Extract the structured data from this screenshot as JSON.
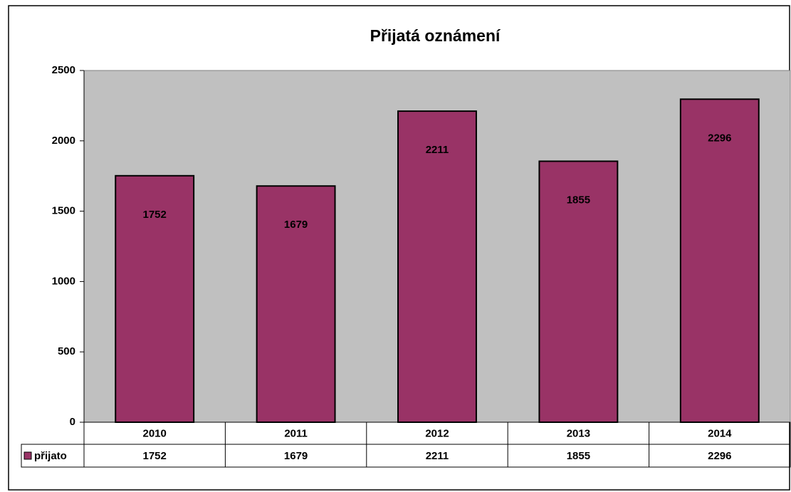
{
  "chart_data": {
    "type": "bar",
    "title": "Přijatá oznámení",
    "categories": [
      "2010",
      "2011",
      "2012",
      "2013",
      "2014"
    ],
    "series": [
      {
        "name": "přijato",
        "color": "#993366",
        "values": [
          1752,
          1679,
          2211,
          1855,
          2296
        ]
      }
    ],
    "ylim": [
      0,
      2500
    ],
    "yticks": [
      0,
      500,
      1000,
      1500,
      2000,
      2500
    ],
    "grid": false,
    "data_table": true
  }
}
